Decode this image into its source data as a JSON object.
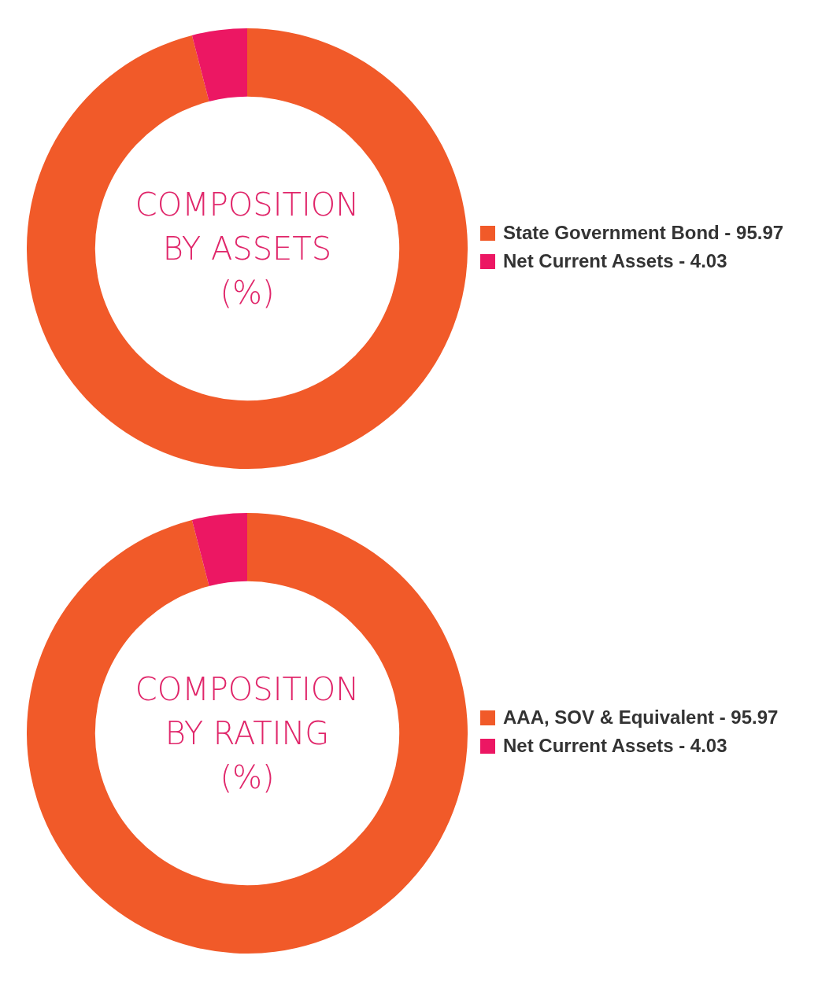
{
  "chart_data": [
    {
      "type": "donut",
      "title": "COMPOSITION\nBY ASSETS\n(%)",
      "categories": [
        "State Government Bond - 95.97",
        "Net Current Assets - 4.03"
      ],
      "values": [
        95.97,
        4.03
      ],
      "colors": [
        "#f15a29",
        "#ec1763"
      ],
      "legend": "right"
    },
    {
      "type": "donut",
      "title": "COMPOSITION\nBY RATING\n(%)",
      "categories": [
        "AAA, SOV & Equivalent - 95.97",
        "Net Current Assets - 4.03"
      ],
      "values": [
        95.97,
        4.03
      ],
      "colors": [
        "#f15a29",
        "#ec1763"
      ],
      "legend": "right"
    }
  ]
}
